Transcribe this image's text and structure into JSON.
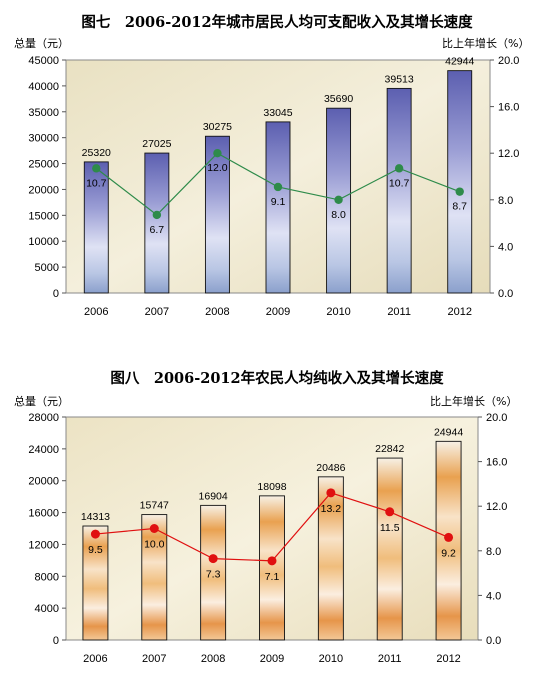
{
  "chart_data": [
    {
      "type": "bar",
      "title": "图七　2006-2012年城市居民人均可支配收入及其增长速度",
      "ylabel": "总量（元）",
      "y2label": "比上年增长（%）",
      "categories": [
        "2006",
        "2007",
        "2008",
        "2009",
        "2010",
        "2011",
        "2012"
      ],
      "ylim": [
        0,
        45000
      ],
      "yticks": [
        "0",
        "5000",
        "10000",
        "15000",
        "20000",
        "25000",
        "30000",
        "35000",
        "40000",
        "45000"
      ],
      "y2lim": [
        0,
        20
      ],
      "y2ticks": [
        "0.0",
        "4.0",
        "8.0",
        "12.0",
        "16.0",
        "20.0"
      ],
      "series": [
        {
          "type": "bar",
          "values": [
            25320,
            27025,
            30275,
            33045,
            35690,
            39513,
            42944
          ],
          "labels": [
            "25320",
            "27025",
            "30275",
            "33045",
            "35690",
            "39513",
            "42944"
          ],
          "color": "#6c6fb8"
        },
        {
          "type": "line",
          "axis": "right",
          "values": [
            10.7,
            6.7,
            12.0,
            9.1,
            8.0,
            10.7,
            8.7
          ],
          "labels": [
            "10.7",
            "6.7",
            "12.0",
            "9.1",
            "8.0",
            "10.7",
            "8.7"
          ],
          "color": "#2e8b4a"
        }
      ],
      "background": "#f1ebd3",
      "grid": false
    },
    {
      "type": "bar",
      "title": "图八　2006-2012年农民人均纯收入及其增长速度",
      "ylabel": "总量（元）",
      "y2label": "比上年增长（%）",
      "categories": [
        "2006",
        "2007",
        "2008",
        "2009",
        "2010",
        "2011",
        "2012"
      ],
      "ylim": [
        0,
        28000
      ],
      "yticks": [
        "0",
        "4000",
        "8000",
        "12000",
        "16000",
        "20000",
        "24000",
        "28000"
      ],
      "y2lim": [
        0,
        20
      ],
      "y2ticks": [
        "0.0",
        "4.0",
        "8.0",
        "12.0",
        "16.0",
        "20.0"
      ],
      "series": [
        {
          "type": "bar",
          "values": [
            14313,
            15747,
            16904,
            18098,
            20486,
            22842,
            24944
          ],
          "labels": [
            "14313",
            "15747",
            "16904",
            "18098",
            "20486",
            "22842",
            "24944"
          ],
          "color": "#e8a24a"
        },
        {
          "type": "line",
          "axis": "right",
          "values": [
            9.5,
            10.0,
            7.3,
            7.1,
            13.2,
            11.5,
            9.2
          ],
          "labels": [
            "9.5",
            "10.0",
            "7.3",
            "7.1",
            "13.2",
            "11.5",
            "9.2"
          ],
          "color": "#e01010"
        }
      ],
      "background": "#f1ebd3",
      "grid": false
    }
  ]
}
